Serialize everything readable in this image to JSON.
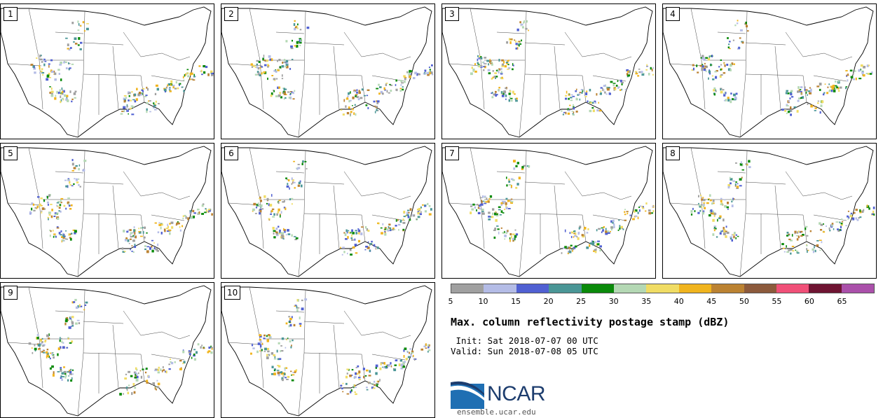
{
  "stamps": [
    {
      "label": "1"
    },
    {
      "label": "2"
    },
    {
      "label": "3"
    },
    {
      "label": "4"
    },
    {
      "label": "5"
    },
    {
      "label": "6"
    },
    {
      "label": "7"
    },
    {
      "label": "8"
    },
    {
      "label": "9"
    },
    {
      "label": "10"
    }
  ],
  "colorbar": {
    "colors": [
      "#a0a0a0",
      "#b4bce6",
      "#5060d2",
      "#4a9696",
      "#0a8a0a",
      "#b4d8b4",
      "#f0dc64",
      "#f0b41e",
      "#bb8232",
      "#8c5a3c",
      "#f05078",
      "#6e1432",
      "#aa50aa"
    ],
    "tick_labels": [
      "5",
      "10",
      "15",
      "20",
      "25",
      "30",
      "35",
      "40",
      "45",
      "50",
      "55",
      "60",
      "65"
    ]
  },
  "title": "Max. column reflectivity postage stamp (dBZ)",
  "init": " Init: Sat 2018-07-07 00 UTC",
  "valid": "Valid: Sun 2018-07-08 05 UTC",
  "logo": {
    "text": "NCAR",
    "url": "ensemble.ucar.edu",
    "colors": {
      "blue": "#1f6fb3",
      "navy": "#1d3d6e"
    }
  }
}
